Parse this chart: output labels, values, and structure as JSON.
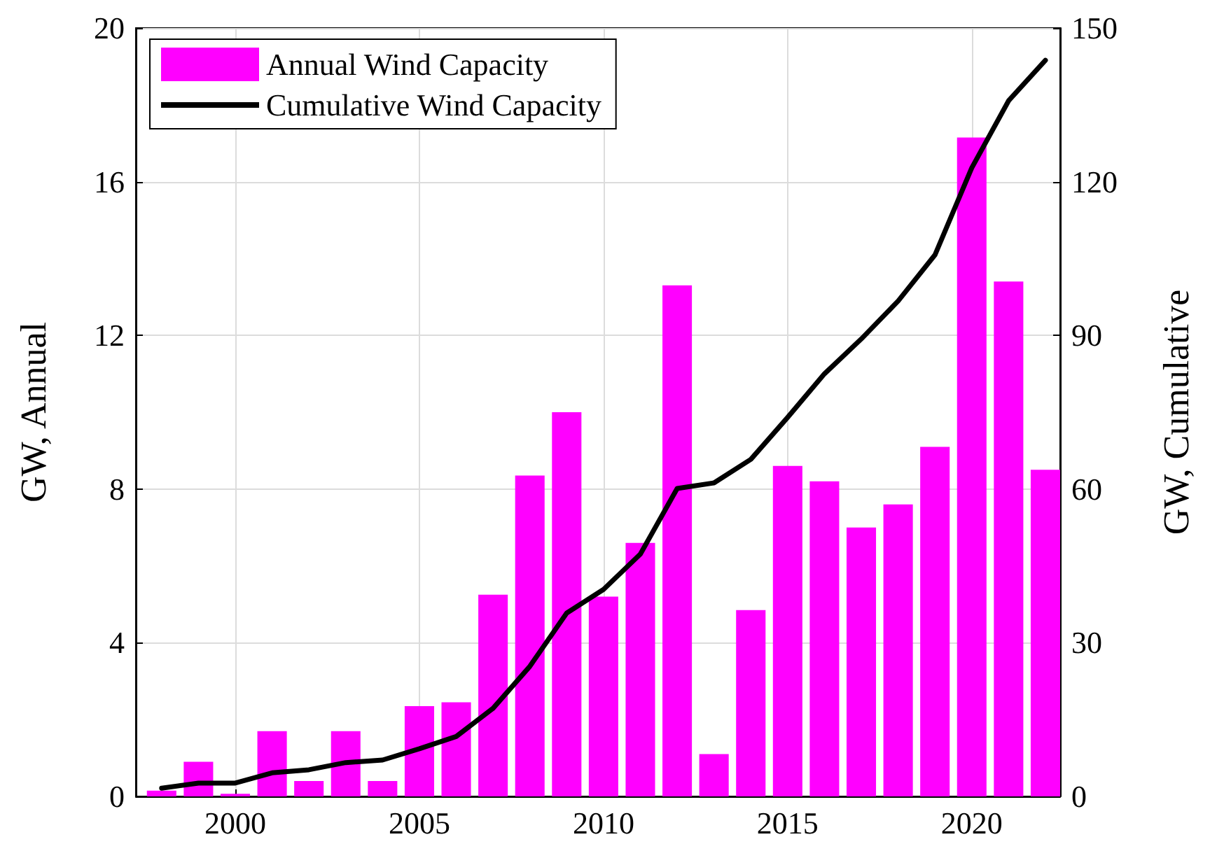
{
  "chart_data": {
    "type": "bar",
    "ylabel": "GW, Annual",
    "y2label": "GW, Cumulative",
    "x": [
      1998,
      1999,
      2000,
      2001,
      2002,
      2003,
      2004,
      2005,
      2006,
      2007,
      2008,
      2009,
      2010,
      2011,
      2012,
      2013,
      2014,
      2015,
      2016,
      2017,
      2018,
      2019,
      2020,
      2021,
      2022
    ],
    "series": [
      {
        "name": "Annual Wind Capacity",
        "color": "#ff00ff",
        "values": [
          0.15,
          0.9,
          0.07,
          1.7,
          0.4,
          1.7,
          0.4,
          2.35,
          2.45,
          5.25,
          8.35,
          10.0,
          5.2,
          6.6,
          13.3,
          1.1,
          4.85,
          8.6,
          8.2,
          7.0,
          7.6,
          9.1,
          17.15,
          13.4,
          8.5
        ]
      },
      {
        "name": "Cumulative Wind Capacity",
        "type": "line",
        "axis": "y2",
        "color": "#000000",
        "marker": "none",
        "line_style": "solid",
        "values": [
          1.6,
          2.6,
          2.6,
          4.6,
          5.2,
          6.6,
          7.1,
          9.3,
          11.7,
          17.2,
          25.4,
          35.8,
          40.4,
          47.3,
          60.1,
          61.2,
          65.8,
          74.0,
          82.5,
          89.3,
          96.7,
          105.7,
          122.7,
          135.8,
          143.7
        ]
      }
    ],
    "xlim": [
      1997.3,
      2022.4
    ],
    "xticks": [
      2000,
      2005,
      2010,
      2015,
      2020
    ],
    "ylim": [
      0,
      20
    ],
    "yticks": [
      0,
      4,
      8,
      12,
      16,
      20
    ],
    "y2lim": [
      0,
      150
    ],
    "y2ticks": [
      0,
      30,
      60,
      90,
      120,
      150
    ],
    "grid": true,
    "legend": "top left"
  }
}
